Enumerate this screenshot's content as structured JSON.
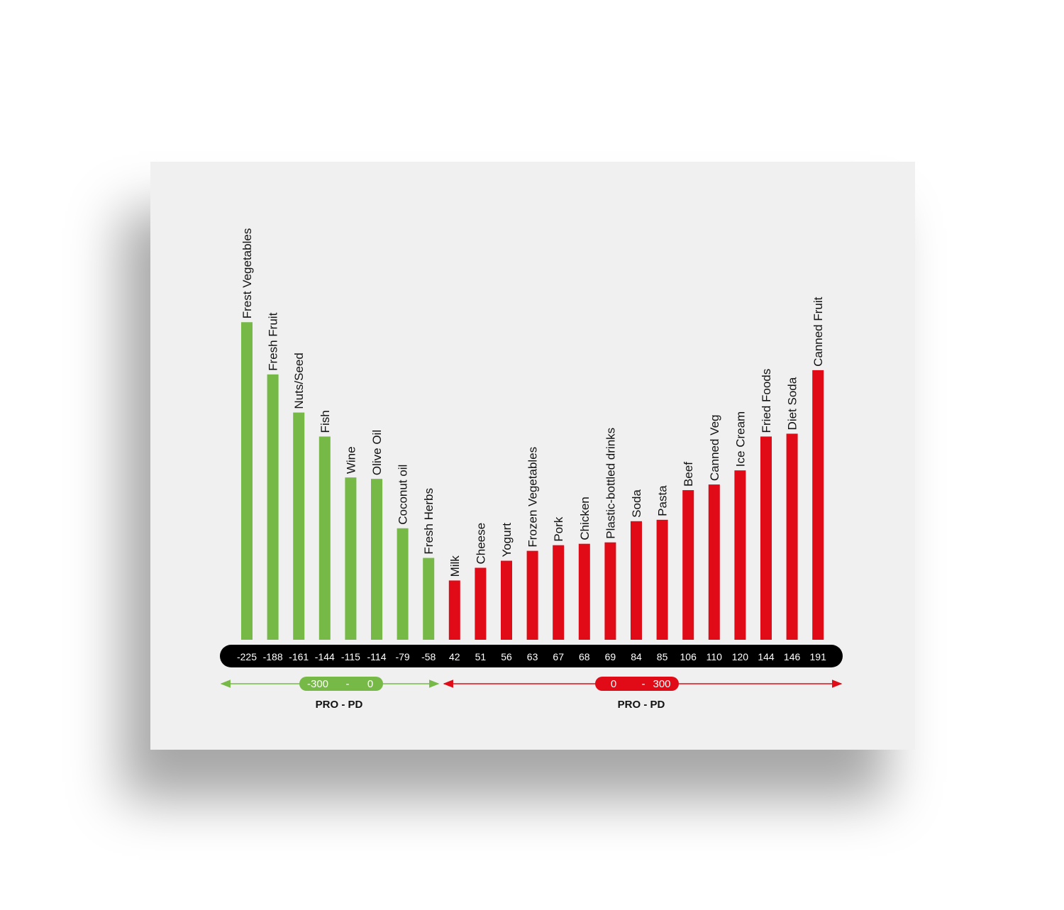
{
  "chart_data": {
    "type": "bar",
    "categories": [
      "Frest Vegetables",
      "Fresh Fruit",
      "Nuts/Seed",
      "Fish",
      "Wine",
      "Olive Oil",
      "Coconut oil",
      "Fresh Herbs",
      "Milk",
      "Cheese",
      "Yogurt",
      "Frozen Vegetables",
      "Pork",
      "Chicken",
      "Plastic-bottled drinks",
      "Soda",
      "Pasta",
      "Beef",
      "Canned Veg",
      "Ice Cream",
      "Fried Foods",
      "Diet Soda",
      "Canned Fruit"
    ],
    "values": [
      -225,
      -188,
      -161,
      -144,
      -115,
      -114,
      -79,
      -58,
      42,
      51,
      56,
      63,
      67,
      68,
      69,
      84,
      85,
      106,
      110,
      120,
      144,
      146,
      191
    ],
    "value_labels": [
      "-225",
      "-188",
      "-161",
      "-144",
      "-115",
      "-114",
      "-79",
      "-58",
      "42",
      "51",
      "56",
      "63",
      "67",
      "68",
      "69",
      "84",
      "85",
      "106",
      "110",
      "120",
      "144",
      "146",
      "191"
    ],
    "colors": {
      "negative": "#76b947",
      "positive": "#e00b16",
      "axis_band": "#000000"
    },
    "ranges": [
      {
        "from": "-300",
        "sep": "-",
        "to": "0",
        "caption": "PRO - PD",
        "color": "#76b947"
      },
      {
        "from": "0",
        "sep": "-",
        "to": "300",
        "caption": "PRO - PD",
        "color": "#e00b16"
      }
    ],
    "grid": false,
    "legend": "none"
  }
}
